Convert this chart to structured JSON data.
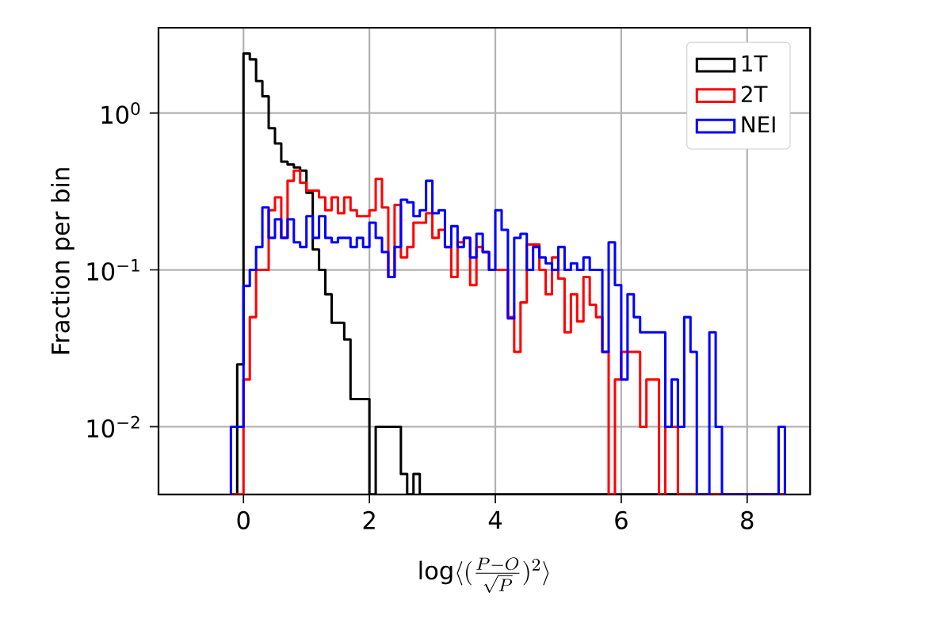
{
  "chart_data": {
    "type": "histogram",
    "xlabel": "\\log\\langle(\\frac{P-O}{\\sqrt{P}})^{2}\\rangle",
    "ylabel": "Fraction per bin",
    "xlim": [
      -1.35,
      9.0
    ],
    "xticks": [
      0,
      2,
      4,
      6,
      8
    ],
    "ylim": [
      0.0037,
      3.5
    ],
    "yticks": [
      {
        "value": 1,
        "label": "10$^{0}$"
      },
      {
        "value": 0.1,
        "label": "10$^{−1}$"
      },
      {
        "value": 0.01,
        "label": "10$^{−2}$"
      }
    ],
    "log": "y",
    "grid": true,
    "legend": "top right",
    "bins": [
      -0.2,
      -0.1,
      0.0,
      0.1,
      0.2,
      0.3,
      0.4,
      0.5,
      0.6,
      0.7,
      0.8,
      0.9,
      1.0,
      1.1,
      1.2,
      1.3,
      1.4,
      1.5,
      1.6,
      1.7,
      1.8,
      1.9,
      2.0,
      2.1,
      2.2,
      2.3,
      2.4,
      2.5,
      2.6,
      2.7,
      2.8,
      2.9,
      3.0,
      3.1,
      3.2,
      3.3,
      3.4,
      3.5,
      3.6,
      3.7,
      3.8,
      3.9,
      4.0,
      4.1,
      4.2,
      4.3,
      4.4,
      4.5,
      4.6,
      4.7,
      4.8,
      4.9,
      5.0,
      5.1,
      5.2,
      5.3,
      5.4,
      5.5,
      5.6,
      5.7,
      5.8,
      5.9,
      6.0,
      6.1,
      6.2,
      6.3,
      6.4,
      6.5,
      6.6,
      6.7,
      6.8,
      6.9,
      7.0,
      7.1,
      7.2,
      7.3,
      7.4,
      7.5,
      7.6,
      7.7,
      7.8,
      7.9,
      8.0,
      8.1,
      8.2,
      8.3,
      8.4,
      8.5,
      8.6
    ],
    "series": [
      {
        "name": "1T",
        "color": "#000000",
        "values": [
          null,
          0.025,
          2.4,
          2.2,
          1.6,
          1.28,
          0.8,
          0.64,
          0.49,
          0.47,
          0.45,
          0.43,
          0.31,
          0.135,
          0.1,
          0.07,
          0.046,
          0.046,
          0.036,
          0.015,
          0.015,
          0.015,
          null,
          0.01,
          0.01,
          0.01,
          0.01,
          0.005,
          null,
          0.005,
          null,
          null,
          null,
          null,
          null,
          null,
          null,
          null,
          null,
          null,
          null,
          null,
          null,
          null,
          null,
          null,
          null,
          null,
          null,
          null,
          null,
          null,
          null,
          null,
          null,
          null,
          null,
          null,
          null,
          null,
          null,
          null,
          null,
          null,
          null,
          null,
          null,
          null,
          null,
          null,
          null,
          null,
          null,
          null,
          null,
          null,
          null,
          null,
          null,
          null,
          null,
          null,
          null,
          null,
          null,
          null,
          null,
          null
        ]
      },
      {
        "name": "2T",
        "color": "#ff0000",
        "values": [
          null,
          null,
          0.02,
          0.05,
          0.1,
          0.1,
          0.24,
          0.29,
          0.16,
          0.37,
          0.43,
          0.36,
          0.32,
          0.32,
          0.29,
          0.24,
          0.29,
          0.23,
          0.29,
          0.24,
          0.22,
          0.22,
          0.24,
          0.38,
          0.25,
          0.09,
          0.26,
          0.12,
          0.14,
          0.2,
          0.2,
          0.23,
          0.16,
          0.18,
          0.14,
          0.09,
          0.15,
          0.16,
          0.08,
          0.14,
          0.13,
          0.1,
          0.1,
          0.1,
          0.05,
          0.03,
          0.062,
          0.145,
          0.145,
          0.1,
          0.07,
          0.12,
          0.088,
          0.04,
          0.07,
          0.047,
          0.09,
          0.06,
          0.05,
          0.03,
          null,
          0.02,
          0.03,
          0.03,
          0.03,
          0.01,
          0.02,
          0.02,
          null,
          0.01,
          0.01,
          null,
          null,
          null,
          null,
          null,
          null,
          null,
          null,
          null,
          null,
          null,
          null,
          null,
          null,
          null,
          null,
          null
        ]
      },
      {
        "name": "NEI",
        "color": "#0000ff",
        "values": [
          0.01,
          0.01,
          0.079,
          0.1,
          0.14,
          0.25,
          0.16,
          0.21,
          0.16,
          0.21,
          0.15,
          0.14,
          0.22,
          0.16,
          0.22,
          0.16,
          0.15,
          0.16,
          0.16,
          0.14,
          0.16,
          0.14,
          0.2,
          0.16,
          0.13,
          0.09,
          0.14,
          0.28,
          0.27,
          0.22,
          0.24,
          0.37,
          0.23,
          0.24,
          0.14,
          0.19,
          0.14,
          0.16,
          0.12,
          0.17,
          0.13,
          0.1,
          0.24,
          0.18,
          0.049,
          0.16,
          0.17,
          0.1,
          0.14,
          0.12,
          0.11,
          0.1,
          0.14,
          0.1,
          0.11,
          0.1,
          0.12,
          0.1,
          0.1,
          0.03,
          0.15,
          0.08,
          0.02,
          0.07,
          0.05,
          0.04,
          0.04,
          0.04,
          0.04,
          0.01,
          0.02,
          0.01,
          0.05,
          0.03,
          null,
          null,
          0.04,
          0.01,
          null,
          null,
          null,
          null,
          null,
          null,
          null,
          null,
          null,
          0.01
        ]
      }
    ]
  }
}
